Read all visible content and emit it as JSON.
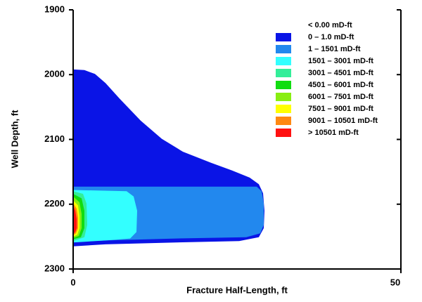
{
  "chart_data": {
    "type": "area",
    "x_label": "Fracture Half-Length, ft",
    "y_label": "Well Depth, ft",
    "xlim": [
      0,
      50
    ],
    "xticks": [
      0,
      50
    ],
    "ylim": [
      1900,
      2300
    ],
    "yticks": [
      1900,
      2000,
      2100,
      2200,
      2300
    ],
    "invert_y": true,
    "series": [
      {
        "name": "< 0.00 mD-ft",
        "color": "#ffffff"
      },
      {
        "name": "0 – 1.0 mD-ft",
        "color": "#0a14e6",
        "x": [
          0,
          1.72,
          3.33,
          4.94,
          7.08,
          10.3,
          13.52,
          16.74,
          21.03,
          24.25,
          26.93,
          28.33,
          28.97,
          29.18,
          29.08,
          28.33,
          25.32,
          15.67,
          4.94,
          0
        ],
        "values": [
          1992,
          1993,
          1999,
          2013,
          2037,
          2071,
          2099,
          2119,
          2136,
          2148,
          2159,
          2169,
          2183,
          2210,
          2237,
          2251,
          2257,
          2259,
          2262,
          2265
        ]
      },
      {
        "name": "1 – 1501 mD-ft",
        "color": "#2288ee",
        "x": [
          0,
          28.0,
          28.76,
          29.08,
          29.08,
          28.54,
          26.4,
          15.67,
          4.94,
          0
        ],
        "values": [
          2173,
          2173,
          2180,
          2199,
          2232,
          2245,
          2251,
          2253,
          2256,
          2258
        ]
      },
      {
        "name": "1501 – 3001 mD-ft",
        "color": "#33ffff",
        "x": [
          0,
          8.15,
          9.23,
          9.76,
          9.66,
          8.69,
          4.94,
          0
        ],
        "values": [
          2178,
          2180,
          2188,
          2210,
          2243,
          2253,
          2256,
          2259
        ]
      },
      {
        "name": "3001 – 4501 mD-ft",
        "color": "#33ee99",
        "x": [
          0,
          1.5,
          2.04,
          2.15,
          1.72,
          0
        ],
        "values": [
          2180,
          2184,
          2199,
          2232,
          2251,
          2257
        ]
      },
      {
        "name": "4501 – 6001 mD-ft",
        "color": "#11dd11",
        "x": [
          0,
          1.29,
          1.72,
          1.72,
          1.18,
          0
        ],
        "values": [
          2184,
          2191,
          2210,
          2237,
          2251,
          2254
        ]
      },
      {
        "name": "6001 – 7501 mD-ft",
        "color": "#88ee11",
        "x": [
          0,
          0.97,
          1.29,
          1.29,
          0.86,
          0
        ],
        "values": [
          2188,
          2197,
          2215,
          2237,
          2249,
          2252
        ]
      },
      {
        "name": "7501 – 9001 mD-ft",
        "color": "#ffff00",
        "x": [
          0,
          0.75,
          0.97,
          0.97,
          0.64,
          0
        ],
        "values": [
          2194,
          2202,
          2219,
          2237,
          2247,
          2250
        ]
      },
      {
        "name": "9001 – 10501 mD-ft",
        "color": "#ff8811",
        "x": [
          0,
          0.54,
          0.75,
          0.75,
          0.43,
          0
        ],
        "values": [
          2198,
          2207,
          2221,
          2237,
          2245,
          2248
        ]
      },
      {
        "name": "> 10501 mD-ft",
        "color": "#ff1111",
        "x": [
          0,
          0.32,
          0.54,
          0.54,
          0.32,
          0
        ],
        "values": [
          2202,
          2210,
          2223,
          2237,
          2243,
          2246
        ]
      }
    ]
  }
}
